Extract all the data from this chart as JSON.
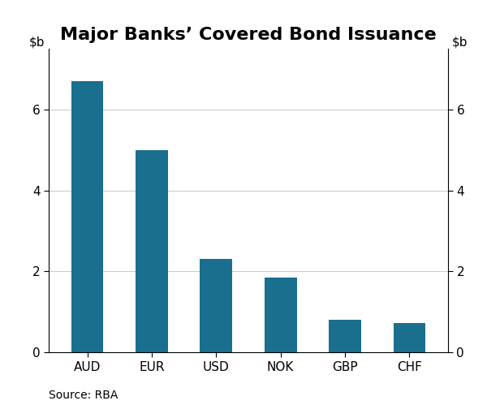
{
  "title": "Major Banks’ Covered Bond Issuance",
  "categories": [
    "AUD",
    "EUR",
    "USD",
    "NOK",
    "GBP",
    "CHF"
  ],
  "values": [
    6.7,
    5.0,
    2.3,
    1.85,
    0.8,
    0.73
  ],
  "bar_color": "#1a6e8e",
  "source": "Source: RBA",
  "ylim": [
    0,
    7.5
  ],
  "yticks": [
    0,
    2,
    4,
    6
  ],
  "background_color": "#ffffff",
  "grid_color": "#cccccc",
  "title_fontsize": 16,
  "axis_label_fontsize": 11,
  "tick_fontsize": 11,
  "source_fontsize": 10
}
